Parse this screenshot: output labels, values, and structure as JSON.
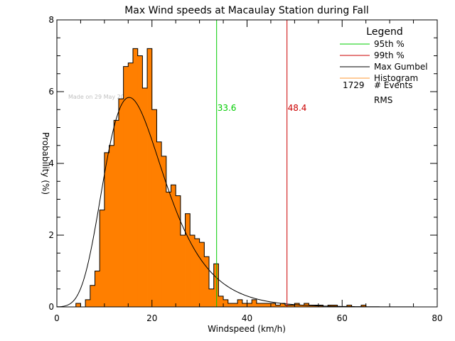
{
  "chart_data": {
    "type": "bar",
    "title": "Max Wind speeds at Macaulay Station during Fall",
    "xlabel": "Windspeed (km/h)",
    "ylabel": "Probability (%)",
    "xlim": [
      0,
      80
    ],
    "ylim": [
      0,
      8
    ],
    "x_ticks": [
      "0",
      "20",
      "40",
      "60",
      "80"
    ],
    "y_ticks": [
      "0",
      "2",
      "4",
      "6",
      "8"
    ],
    "grid": false,
    "legend_position": "top-right",
    "bin_width": 1,
    "histogram": {
      "name": "Histogram",
      "color": "#ff7f00",
      "bins_start": [
        4,
        5,
        6,
        7,
        8,
        9,
        10,
        11,
        12,
        13,
        14,
        15,
        16,
        17,
        18,
        19,
        20,
        21,
        22,
        23,
        24,
        25,
        26,
        27,
        28,
        29,
        30,
        31,
        32,
        33,
        34,
        35,
        36,
        37,
        38,
        39,
        40,
        41,
        42,
        43,
        44,
        45,
        46,
        47,
        48,
        49,
        50,
        51,
        52,
        53,
        54,
        55,
        56,
        57,
        58,
        59,
        60,
        61,
        62,
        63,
        64
      ],
      "values": [
        0.1,
        0.0,
        0.2,
        0.6,
        1.0,
        2.7,
        4.3,
        4.5,
        5.2,
        5.8,
        6.7,
        6.8,
        7.2,
        7.0,
        6.1,
        7.2,
        5.5,
        4.6,
        4.2,
        3.2,
        3.4,
        3.1,
        2.0,
        2.6,
        2.0,
        1.9,
        1.8,
        1.4,
        0.5,
        1.2,
        0.3,
        0.2,
        0.1,
        0.1,
        0.2,
        0.1,
        0.1,
        0.2,
        0.1,
        0.1,
        0.1,
        0.1,
        0.05,
        0.1,
        0.05,
        0.05,
        0.1,
        0.05,
        0.1,
        0.05,
        0.05,
        0.05,
        0.0,
        0.05,
        0.05,
        0.0,
        0.0,
        0.05,
        0.0,
        0.0,
        0.05
      ]
    },
    "gumbel_fit": {
      "name": "Max Gumbel",
      "color": "#000000",
      "mode": 15.2,
      "scale": 6.3,
      "x_range": [
        0,
        80
      ]
    },
    "percentile_lines": [
      {
        "name": "95th %",
        "x": 33.6,
        "label": "33.6",
        "color": "#00cc00"
      },
      {
        "name": "99th %",
        "x": 48.4,
        "label": "48.4",
        "color": "#cc0000"
      }
    ],
    "legend": {
      "title": "Legend",
      "entries": [
        {
          "label": "95th %",
          "color": "#00cc00"
        },
        {
          "label": "99th %",
          "color": "#cc0000"
        },
        {
          "label": "Max Gumbel",
          "color": "#000000"
        },
        {
          "label": "Histogram",
          "color": "#ff9933"
        }
      ],
      "events_count": "1729",
      "events_label": "# Events",
      "rms_label": "RMS"
    },
    "watermark": "Made on 29 May 2025"
  }
}
